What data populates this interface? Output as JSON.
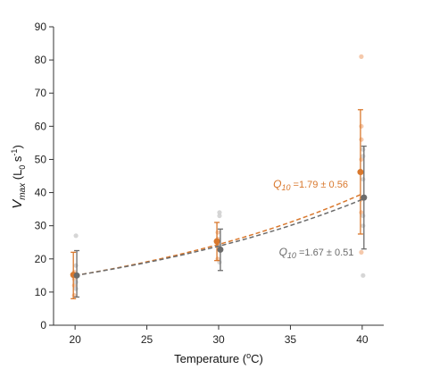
{
  "chart_data": {
    "type": "scatter",
    "xlabel": {
      "main": "Temperature (",
      "sup": "o",
      "tail": "C)"
    },
    "ylabel": {
      "v": "V",
      "max": "max",
      "open": " (L",
      "zero": "0",
      "s": " s",
      "exp": "-1",
      "close": ")"
    },
    "xlim": [
      18.5,
      41.5
    ],
    "ylim": [
      0,
      90
    ],
    "x_ticks": [
      20,
      25,
      30,
      35,
      40
    ],
    "y_ticks": [
      0,
      10,
      20,
      30,
      40,
      50,
      60,
      70,
      80,
      90
    ],
    "grid": false,
    "series": [
      {
        "color": "#d9782d",
        "raw_color": "#f4c3a3",
        "x_offset": -0.12,
        "raw_points": [
          [
            20,
            16
          ],
          [
            20,
            14
          ],
          [
            20,
            12
          ],
          [
            20,
            9
          ],
          [
            30,
            28
          ],
          [
            30,
            26
          ],
          [
            30,
            24
          ],
          [
            30,
            20
          ],
          [
            40,
            81
          ],
          [
            40,
            60
          ],
          [
            40,
            56
          ],
          [
            40,
            50
          ],
          [
            40,
            46
          ],
          [
            40,
            38
          ],
          [
            40,
            34
          ],
          [
            40,
            22
          ]
        ],
        "means": [
          [
            20,
            15.2
          ],
          [
            30,
            25.3
          ],
          [
            40,
            46.2
          ]
        ],
        "errors": [
          [
            20,
            8.0,
            22.0
          ],
          [
            30,
            19.5,
            31.0
          ],
          [
            40,
            27.5,
            65.0
          ]
        ],
        "fit": {
          "base": 15.0,
          "base_t": 20,
          "q10": 1.625
        },
        "annotation": {
          "pre": "Q",
          "sub": "10",
          "text": " =1.79 ± 0.56",
          "x": 33.8,
          "y": 41.5
        }
      },
      {
        "color": "#6b6b6b",
        "raw_color": "#d2d2d2",
        "x_offset": 0.12,
        "raw_points": [
          [
            20,
            27
          ],
          [
            20,
            18
          ],
          [
            20,
            13
          ],
          [
            20,
            11
          ],
          [
            30,
            34
          ],
          [
            30,
            33
          ],
          [
            30,
            24
          ],
          [
            30,
            19
          ],
          [
            40,
            53
          ],
          [
            40,
            51
          ],
          [
            40,
            44
          ],
          [
            40,
            33
          ],
          [
            40,
            30
          ],
          [
            40,
            15
          ]
        ],
        "means": [
          [
            20,
            15.0
          ],
          [
            30,
            22.8
          ],
          [
            40,
            38.5
          ]
        ],
        "errors": [
          [
            20,
            8.5,
            22.5
          ],
          [
            30,
            16.5,
            29.0
          ],
          [
            40,
            23.0,
            54.0
          ]
        ],
        "fit": {
          "base": 15.0,
          "base_t": 20,
          "q10": 1.59
        },
        "annotation": {
          "pre": "Q",
          "sub": "10",
          "text": " =1.67 ± 0.51",
          "x": 34.2,
          "y": 21.0
        }
      }
    ]
  }
}
